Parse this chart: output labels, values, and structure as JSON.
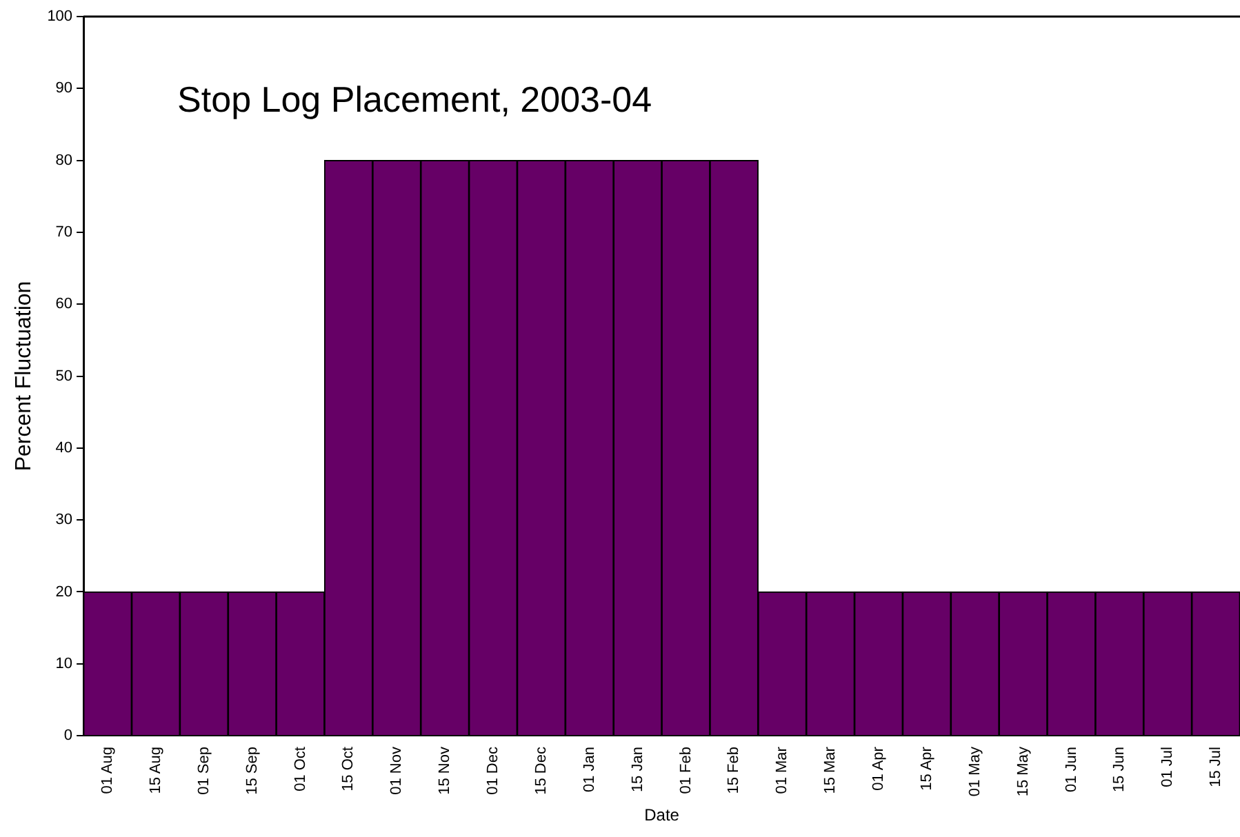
{
  "chart_data": {
    "type": "bar",
    "title": "Stop Log Placement, 2003-04",
    "xlabel": "Date",
    "ylabel": "Percent Fluctuation",
    "categories": [
      "01 Aug",
      "15 Aug",
      "01 Sep",
      "15 Sep",
      "01 Oct",
      "15 Oct",
      "01 Nov",
      "15 Nov",
      "01 Dec",
      "15 Dec",
      "01 Jan",
      "15 Jan",
      "01 Feb",
      "15 Feb",
      "01 Mar",
      "15 Mar",
      "01 Apr",
      "15 Apr",
      "01 May",
      "15 May",
      "01 Jun",
      "15 Jun",
      "01 Jul",
      "15 Jul"
    ],
    "values": [
      20,
      20,
      20,
      20,
      20,
      80,
      80,
      80,
      80,
      80,
      80,
      80,
      80,
      80,
      20,
      20,
      20,
      20,
      20,
      20,
      20,
      20,
      20,
      20
    ],
    "color": "#660066",
    "ylim": [
      0,
      100
    ],
    "yticks": [
      0,
      10,
      20,
      30,
      40,
      50,
      60,
      70,
      80,
      90,
      100
    ],
    "grid": false,
    "legend": false
  }
}
